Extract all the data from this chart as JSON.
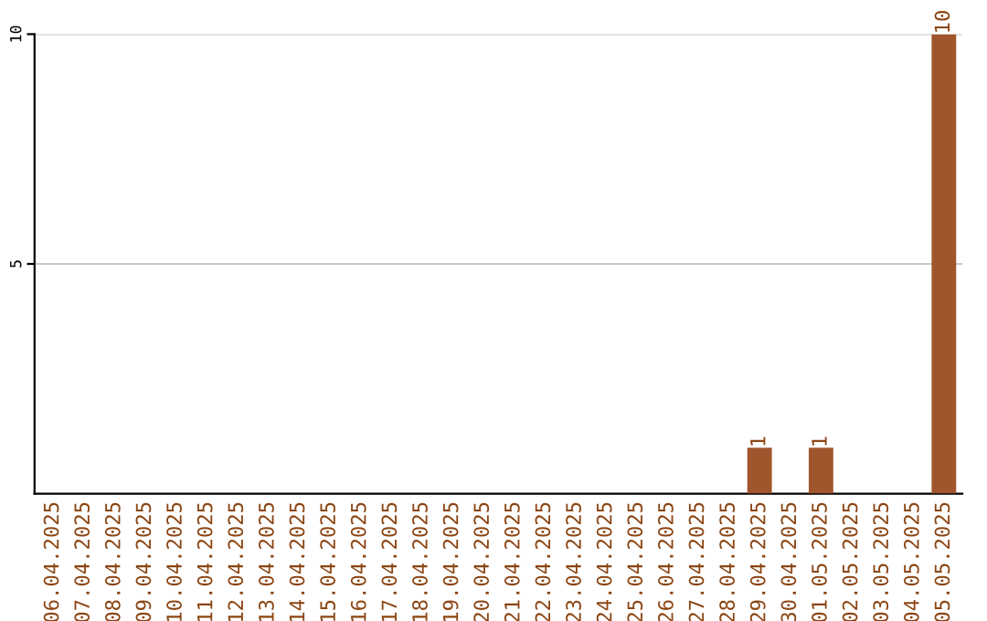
{
  "chart_data": {
    "type": "bar",
    "categories": [
      "06.04.2025",
      "07.04.2025",
      "08.04.2025",
      "09.04.2025",
      "10.04.2025",
      "11.04.2025",
      "12.04.2025",
      "13.04.2025",
      "14.04.2025",
      "15.04.2025",
      "16.04.2025",
      "17.04.2025",
      "18.04.2025",
      "19.04.2025",
      "20.04.2025",
      "21.04.2025",
      "22.04.2025",
      "23.04.2025",
      "24.04.2025",
      "25.04.2025",
      "26.04.2025",
      "27.04.2025",
      "28.04.2025",
      "29.04.2025",
      "30.04.2025",
      "01.05.2025",
      "02.05.2025",
      "03.05.2025",
      "04.05.2025",
      "05.05.2025"
    ],
    "values": [
      0,
      0,
      0,
      0,
      0,
      0,
      0,
      0,
      0,
      0,
      0,
      0,
      0,
      0,
      0,
      0,
      0,
      0,
      0,
      0,
      0,
      0,
      0,
      1,
      0,
      1,
      0,
      0,
      0,
      10
    ],
    "value_labels": [
      null,
      null,
      null,
      null,
      null,
      null,
      null,
      null,
      null,
      null,
      null,
      null,
      null,
      null,
      null,
      null,
      null,
      null,
      null,
      null,
      null,
      null,
      null,
      "1",
      null,
      "1",
      null,
      null,
      null,
      "10"
    ],
    "color": "#a0562c",
    "ylim": [
      0,
      10
    ],
    "yticks": [
      5,
      10
    ],
    "grid": "y"
  }
}
